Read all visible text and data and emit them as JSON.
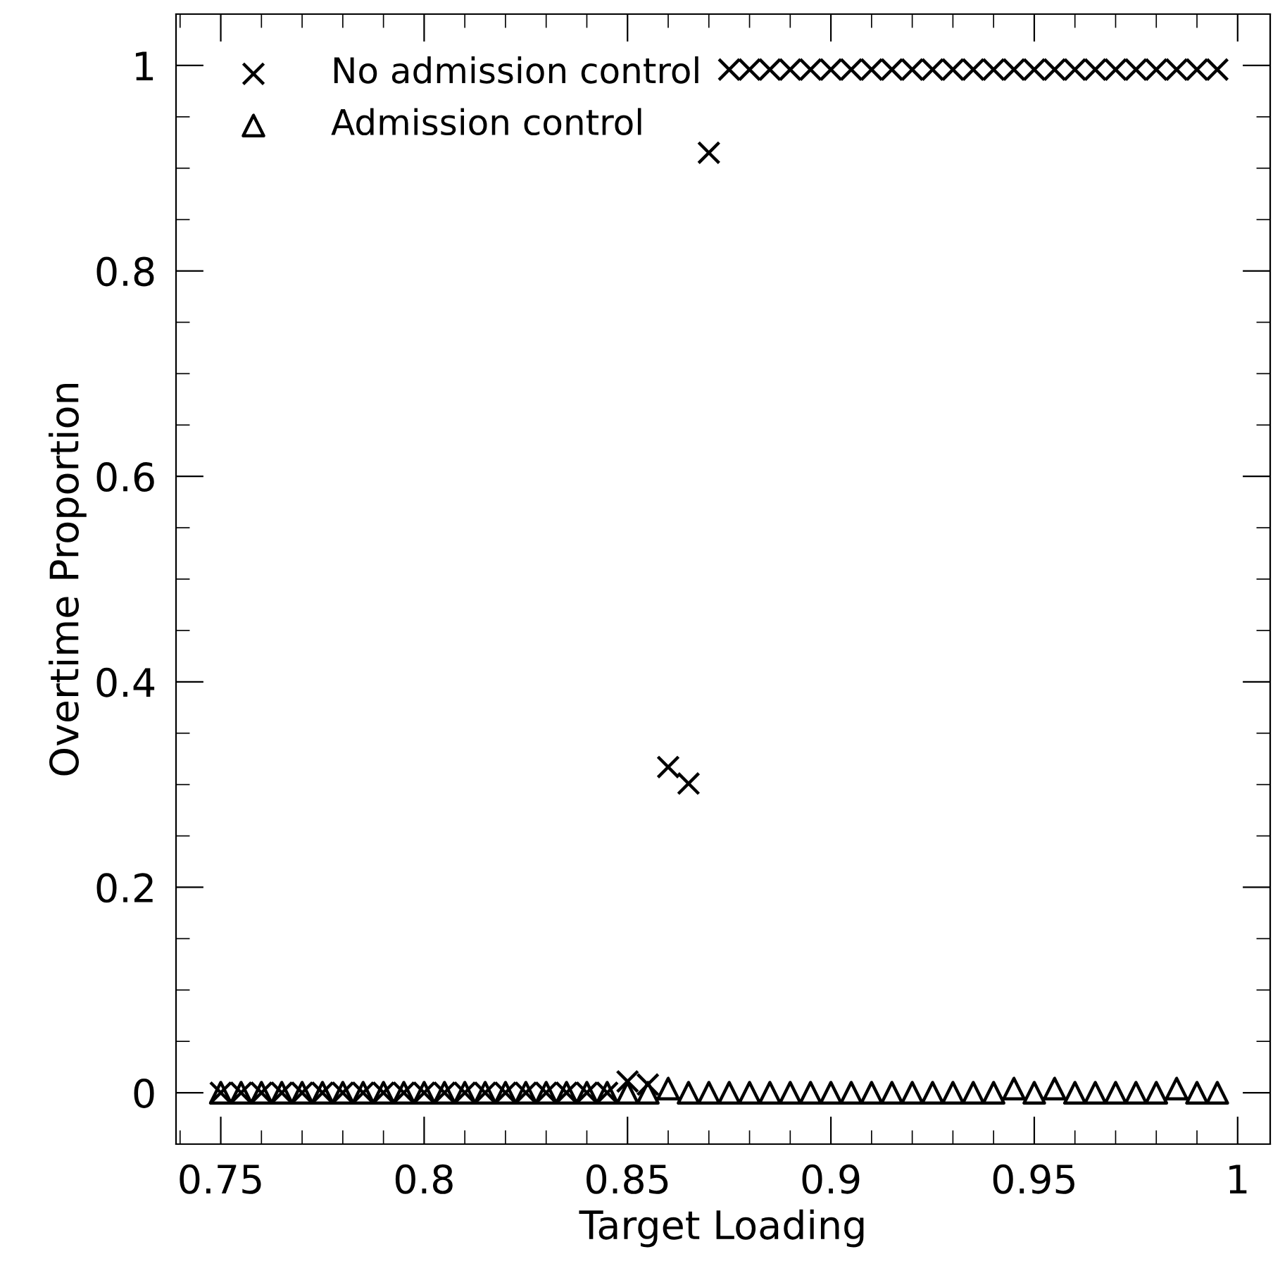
{
  "chart_data": {
    "type": "scatter",
    "xlabel": "Target Loading",
    "ylabel": "Overtime Proportion",
    "x": [
      0.75,
      0.755,
      0.76,
      0.765,
      0.77,
      0.775,
      0.78,
      0.785,
      0.79,
      0.795,
      0.8,
      0.805,
      0.81,
      0.815,
      0.82,
      0.825,
      0.83,
      0.835,
      0.84,
      0.845,
      0.85,
      0.855,
      0.86,
      0.865,
      0.87,
      0.875,
      0.88,
      0.885,
      0.89,
      0.895,
      0.9,
      0.905,
      0.91,
      0.915,
      0.92,
      0.925,
      0.93,
      0.935,
      0.94,
      0.945,
      0.95,
      0.955,
      0.96,
      0.965,
      0.97,
      0.975,
      0.98,
      0.985,
      0.99,
      0.995
    ],
    "series": [
      {
        "name": "No admission control",
        "color": "#000000",
        "marker": "cross",
        "values": [
          0,
          0,
          0,
          0,
          0,
          0,
          0,
          0,
          0,
          0,
          0,
          0,
          0,
          0,
          0,
          0,
          0,
          0,
          0,
          0,
          0.011,
          0.008,
          0.317,
          0.301,
          0.915,
          0.996,
          0.996,
          0.996,
          0.996,
          0.996,
          0.996,
          0.996,
          0.996,
          0.996,
          0.996,
          0.996,
          0.996,
          0.996,
          0.996,
          0.996,
          0.996,
          0.996,
          0.996,
          0.996,
          0.996,
          0.996,
          0.996,
          0.996,
          0.996,
          0.996
        ]
      },
      {
        "name": "Admission control",
        "color": "#000000",
        "marker": "triangle",
        "values": [
          0,
          0,
          0,
          0,
          0,
          0,
          0,
          0,
          0,
          0,
          0,
          0,
          0,
          0,
          0,
          0,
          0,
          0,
          0,
          0,
          0,
          0,
          0.004,
          0,
          0,
          0,
          0,
          0,
          0,
          0,
          0,
          0,
          0,
          0,
          0,
          0,
          0,
          0,
          0,
          0.004,
          0,
          0.004,
          0,
          0,
          0,
          0,
          0,
          0.004,
          0,
          0
        ]
      }
    ],
    "xlim": [
      0.739,
      1.008
    ],
    "ylim": [
      -0.05,
      1.05
    ],
    "xticks": [
      0.75,
      0.8,
      0.85,
      0.9,
      0.95,
      1
    ],
    "yticks": [
      0,
      0.2,
      0.4,
      0.6,
      0.8,
      1
    ],
    "grid": false,
    "legend": "top left"
  }
}
